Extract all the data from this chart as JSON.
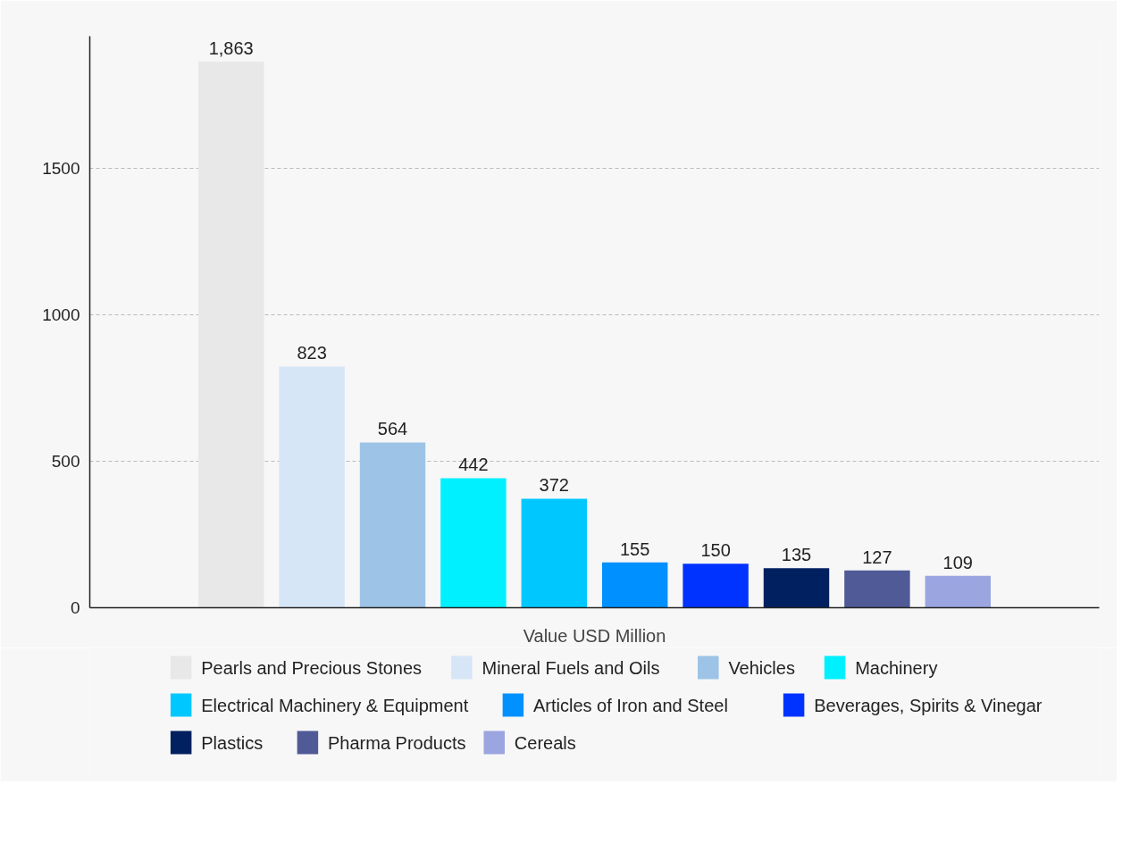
{
  "chart_data": {
    "type": "bar",
    "xlabel": "Value USD Million",
    "categories": [
      null
    ],
    "ylim": [
      0,
      1950
    ],
    "yticks": [
      0,
      500,
      1000,
      1500
    ],
    "grid": "y",
    "legend": "bottom",
    "series": [
      {
        "name": "Pearls and Precious Stones",
        "color": "#e8e8e8",
        "values": [
          1863
        ],
        "value_labels": [
          "1,863"
        ]
      },
      {
        "name": "Mineral Fuels and Oils",
        "color": "#d6e6f7",
        "values": [
          823
        ],
        "value_labels": [
          "823"
        ]
      },
      {
        "name": "Vehicles",
        "color": "#9dc3e6",
        "values": [
          564
        ],
        "value_labels": [
          "564"
        ]
      },
      {
        "name": "Machinery",
        "color": "#00f0ff",
        "values": [
          442
        ],
        "value_labels": [
          "442"
        ]
      },
      {
        "name": "Electrical Machinery & Equipment",
        "color": "#00c8ff",
        "values": [
          372
        ],
        "value_labels": [
          "372"
        ]
      },
      {
        "name": "Articles of Iron and Steel",
        "color": "#0090ff",
        "values": [
          155
        ],
        "value_labels": [
          "155"
        ]
      },
      {
        "name": "Beverages, Spirits & Vinegar",
        "color": "#0033ff",
        "values": [
          150
        ],
        "value_labels": [
          "150"
        ]
      },
      {
        "name": "Plastics",
        "color": "#002060",
        "values": [
          135
        ],
        "value_labels": [
          "135"
        ]
      },
      {
        "name": "Pharma Products",
        "color": "#4f5a96",
        "values": [
          127
        ],
        "value_labels": [
          "127"
        ]
      },
      {
        "name": "Cereals",
        "color": "#9ba5e0",
        "values": [
          109
        ],
        "value_labels": [
          "109"
        ]
      }
    ]
  }
}
